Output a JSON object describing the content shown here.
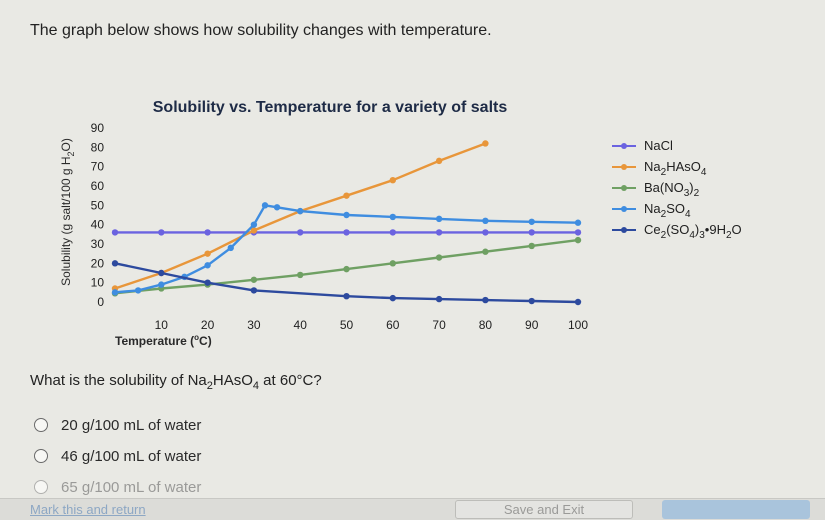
{
  "question": {
    "header": "The graph below shows how solubility changes with temperature.",
    "prompt_before": "What is the solubility of Na",
    "prompt_sub1": "2",
    "prompt_mid": "HAsO",
    "prompt_sub2": "4",
    "prompt_after": " at 60°C?"
  },
  "options": [
    {
      "label": "20 g/100 mL of water"
    },
    {
      "label": "46 g/100 mL of water"
    },
    {
      "label": "65 g/100 mL of water"
    }
  ],
  "footer": {
    "mark_link": "Mark this and return",
    "save_label": "Save and Exit",
    "submit_label": ""
  },
  "chart_data": {
    "type": "line",
    "title": "Solubility vs. Temperature for a variety of salts",
    "xlabel_prefix": "Temperature (",
    "xlabel_deg": "o",
    "xlabel_suffix": "C)",
    "ylabel_prefix": "Solubility (g salt/100 g H",
    "ylabel_sub": "2",
    "ylabel_suffix": "O)",
    "xlim": [
      0,
      100
    ],
    "ylim": [
      0,
      90
    ],
    "x_ticks": [
      10,
      20,
      30,
      40,
      50,
      60,
      70,
      80,
      90,
      100
    ],
    "y_ticks": [
      0,
      10,
      20,
      30,
      40,
      50,
      60,
      70,
      80,
      90
    ],
    "series": [
      {
        "name": "NaCl",
        "legend": [
          [
            "NaCl",
            ""
          ]
        ],
        "color": "#6b63e0",
        "x": [
          0,
          10,
          20,
          30,
          40,
          50,
          60,
          70,
          80,
          90,
          100
        ],
        "y": [
          36,
          36,
          36,
          36,
          36,
          36,
          36,
          36,
          36,
          36,
          36
        ]
      },
      {
        "name": "Na2HAsO4",
        "legend": [
          [
            "Na",
            ""
          ],
          [
            "2",
            "sub"
          ],
          [
            "HAsO",
            ""
          ],
          [
            "4",
            "sub"
          ]
        ],
        "color": "#e8963a",
        "x": [
          0,
          10,
          20,
          30,
          40,
          50,
          60,
          70,
          80
        ],
        "y": [
          7,
          15,
          25,
          37,
          47,
          55,
          63,
          73,
          82
        ]
      },
      {
        "name": "Ba(NO3)2",
        "legend": [
          [
            "Ba(NO",
            ""
          ],
          [
            "3",
            "sub"
          ],
          [
            ")",
            ""
          ],
          [
            "2",
            "sub"
          ]
        ],
        "color": "#6fa063",
        "x": [
          0,
          10,
          20,
          30,
          40,
          50,
          60,
          70,
          80,
          90,
          100
        ],
        "y": [
          4.5,
          7,
          9,
          11.5,
          14,
          17,
          20,
          23,
          26,
          29,
          32
        ]
      },
      {
        "name": "Na2SO4",
        "legend": [
          [
            "Na",
            ""
          ],
          [
            "2",
            "sub"
          ],
          [
            "SO",
            ""
          ],
          [
            "4",
            "sub"
          ]
        ],
        "color": "#3f8de0",
        "x": [
          0,
          5,
          10,
          15,
          20,
          25,
          30,
          32.4,
          35,
          40,
          50,
          60,
          70,
          80,
          90,
          100
        ],
        "y": [
          5,
          6,
          9,
          13,
          19,
          28,
          40,
          50,
          49,
          47,
          45,
          44,
          43,
          42,
          41.5,
          41
        ]
      },
      {
        "name": "Ce2(SO4)3·9H2O",
        "legend": [
          [
            "Ce",
            ""
          ],
          [
            "2",
            "sub"
          ],
          [
            "(SO",
            ""
          ],
          [
            "4",
            "sub"
          ],
          [
            ")",
            ""
          ],
          [
            "3",
            "sub"
          ],
          [
            "•9H",
            ""
          ],
          [
            "2",
            "sub"
          ],
          [
            "O",
            ""
          ]
        ],
        "color": "#2d4a9e",
        "x": [
          0,
          10,
          20,
          30,
          50,
          60,
          70,
          80,
          90,
          100
        ],
        "y": [
          20,
          15,
          10,
          6,
          3,
          2,
          1.5,
          1,
          0.5,
          0
        ]
      }
    ],
    "legend_position": "right",
    "grid": false
  }
}
